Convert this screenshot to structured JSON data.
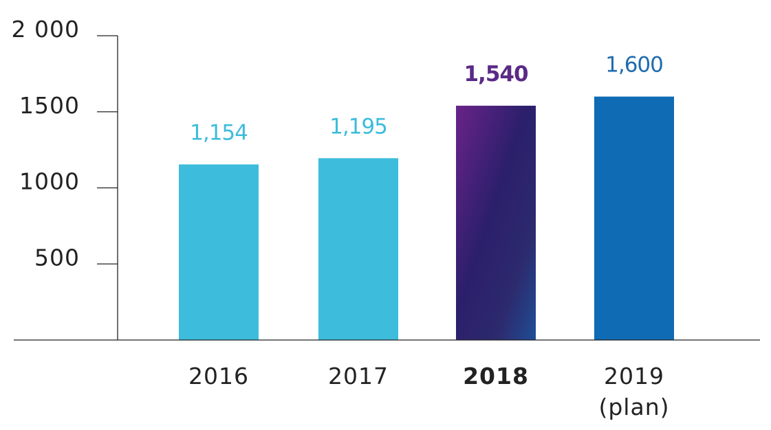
{
  "chart_data": {
    "type": "bar",
    "categories": [
      {
        "lines": [
          "2016"
        ],
        "bold": false
      },
      {
        "lines": [
          "2017"
        ],
        "bold": false
      },
      {
        "lines": [
          "2018"
        ],
        "bold": true
      },
      {
        "lines": [
          "2019",
          "(plan)"
        ],
        "bold": false
      }
    ],
    "values": [
      1154,
      1195,
      1540,
      1600
    ],
    "value_labels": [
      "1,154",
      "1,195",
      "1,540",
      "1,600"
    ],
    "value_label_colors": [
      "#3dbcdc",
      "#3dbcdc",
      "#5a2a86",
      "#1f6cb0"
    ],
    "bar_fills": [
      "#3dbcdc",
      "#3dbcdc",
      "gradient-purple",
      "#0f6bb4"
    ],
    "gradient_colors": [
      "#6a2389",
      "#2b1f6b",
      "#2d2a6e",
      "#1f4e96"
    ],
    "y_ticks": [
      {
        "value": 500,
        "label": "500"
      },
      {
        "value": 1000,
        "label": "1000"
      },
      {
        "value": 1500,
        "label": "1500"
      },
      {
        "value": 2000,
        "label": "2 000"
      }
    ],
    "ylim": [
      0,
      2000
    ],
    "title": "",
    "xlabel": "",
    "ylabel": "",
    "grid": false,
    "legend": "none"
  }
}
